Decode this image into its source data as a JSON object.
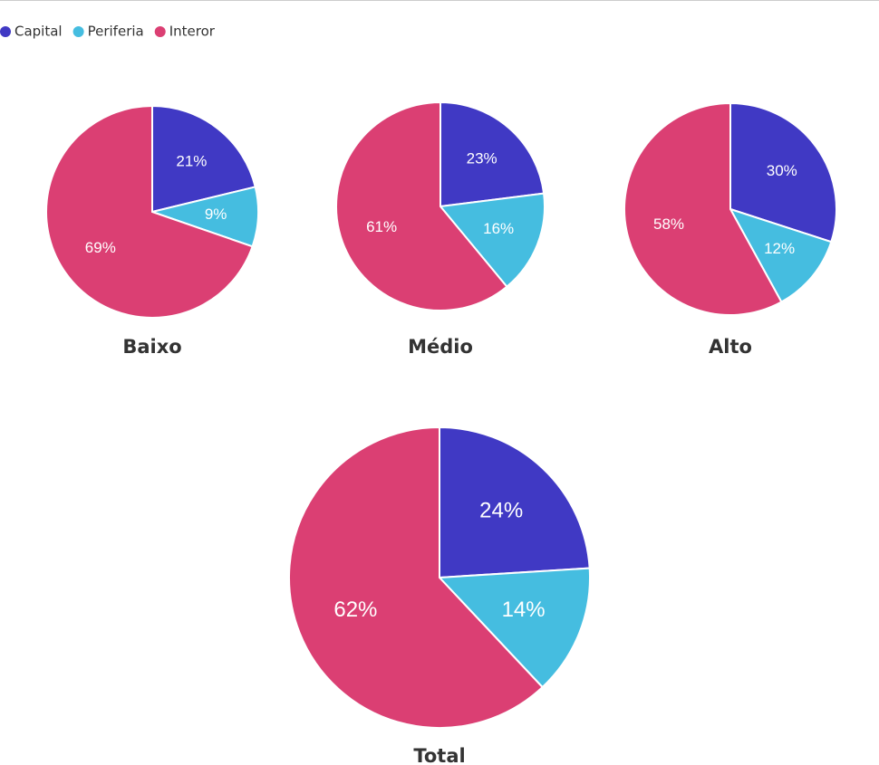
{
  "chart_data": [
    {
      "type": "pie",
      "title": "Baixo",
      "categories": [
        "Capital",
        "Periferia",
        "Interor"
      ],
      "colors": [
        "#4039c4",
        "#45bde0",
        "#db3f73"
      ],
      "values": [
        21,
        9,
        69
      ],
      "value_labels": [
        "21%",
        "9%",
        "69%"
      ]
    },
    {
      "type": "pie",
      "title": "Médio",
      "categories": [
        "Capital",
        "Periferia",
        "Interor"
      ],
      "colors": [
        "#4039c4",
        "#45bde0",
        "#db3f73"
      ],
      "values": [
        23,
        16,
        61
      ],
      "value_labels": [
        "23%",
        "16%",
        "61%"
      ]
    },
    {
      "type": "pie",
      "title": "Alto",
      "categories": [
        "Capital",
        "Periferia",
        "Interor"
      ],
      "colors": [
        "#4039c4",
        "#45bde0",
        "#db3f73"
      ],
      "values": [
        30,
        12,
        58
      ],
      "value_labels": [
        "30%",
        "12%",
        "58%"
      ]
    },
    {
      "type": "pie",
      "title": "Total",
      "categories": [
        "Capital",
        "Periferia",
        "Interor"
      ],
      "colors": [
        "#4039c4",
        "#45bde0",
        "#db3f73"
      ],
      "values": [
        24,
        14,
        62
      ],
      "value_labels": [
        "24%",
        "14%",
        "62%"
      ]
    }
  ]
}
